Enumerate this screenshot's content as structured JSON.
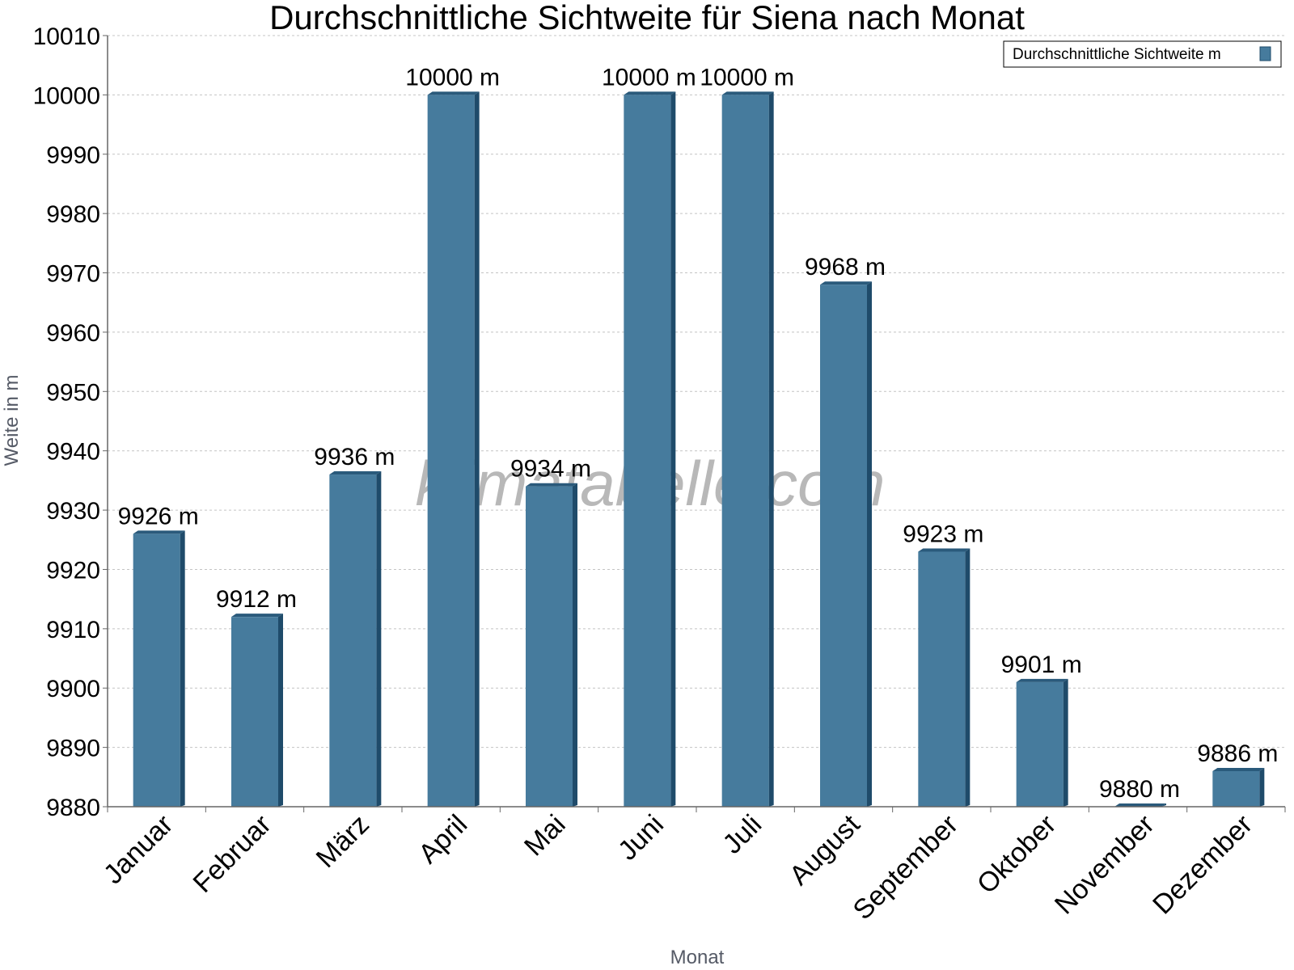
{
  "chart_data": {
    "type": "bar",
    "title": "Durchschnittliche Sichtweite für Siena nach Monat",
    "xlabel": "Monat",
    "ylabel": "Weite in m",
    "categories": [
      "Januar",
      "Februar",
      "März",
      "April",
      "Mai",
      "Juni",
      "Juli",
      "August",
      "September",
      "Oktober",
      "November",
      "Dezember"
    ],
    "series": [
      {
        "name": "Durchschnittliche Sichtweite m",
        "values": [
          9926,
          9912,
          9936,
          10000,
          9934,
          10000,
          10000,
          9968,
          9923,
          9901,
          9880,
          9886
        ],
        "labels": [
          "9926 m",
          "9912 m",
          "9936 m",
          "10000 m",
          "9934 m",
          "10000 m",
          "10000 m",
          "9968 m",
          "9923 m",
          "9901 m",
          "9880 m",
          "9886 m"
        ]
      }
    ],
    "ylim": [
      9880,
      10010
    ],
    "yticks": [
      9880,
      9890,
      9900,
      9910,
      9920,
      9930,
      9940,
      9950,
      9960,
      9970,
      9980,
      9990,
      10000,
      10010
    ],
    "grid": true,
    "legend_position": "top-right",
    "colors": {
      "bar": "#467b9d",
      "bar_side": "#1f4b6a",
      "bar_top": "#2a5a7b"
    }
  },
  "watermark": "klimatabelle.com"
}
